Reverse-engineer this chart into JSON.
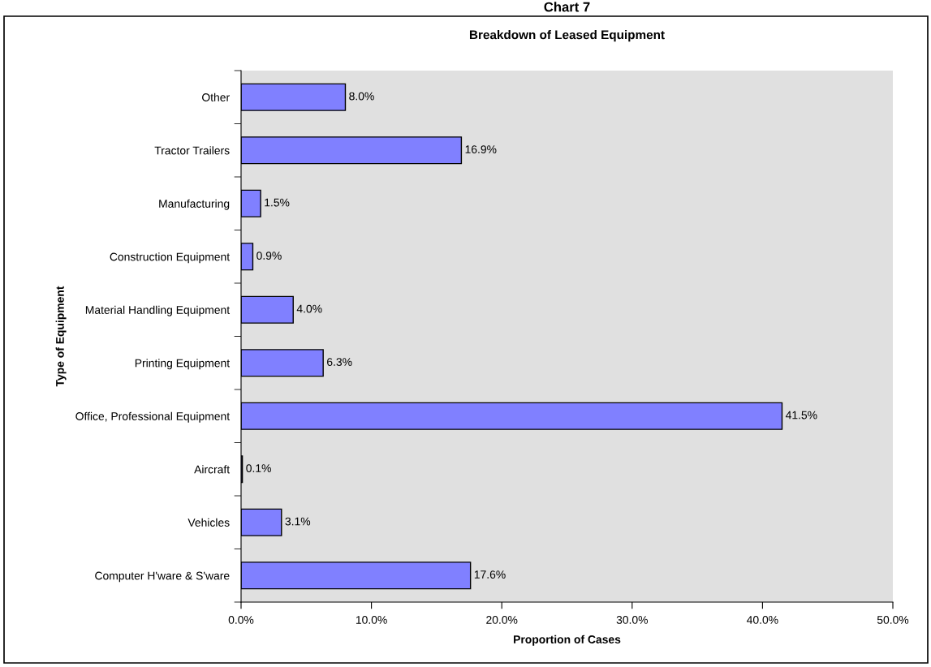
{
  "chart_data": {
    "type": "bar",
    "orientation": "horizontal",
    "title": "Chart 7",
    "subtitle": "Breakdown of Leased Equipment",
    "xlabel": "Proportion of Cases",
    "ylabel": "Type of Equipment",
    "categories": [
      "Other",
      "Tractor Trailers",
      "Manufacturing",
      "Construction Equipment",
      "Material Handling Equipment",
      "Printing Equipment",
      "Office, Professional Equipment",
      "Aircraft",
      "Vehicles",
      "Computer H'ware & S'ware"
    ],
    "values": [
      8.0,
      16.9,
      1.5,
      0.9,
      4.0,
      6.3,
      41.5,
      0.1,
      3.1,
      17.6
    ],
    "value_labels": [
      "8.0%",
      "16.9%",
      "1.5%",
      "0.9%",
      "4.0%",
      "6.3%",
      "41.5%",
      "0.1%",
      "3.1%",
      "17.6%"
    ],
    "color": "#8080ff",
    "xlim": [
      0,
      50
    ],
    "xticks": [
      {
        "value": 0,
        "label": "0.0%"
      },
      {
        "value": 10,
        "label": "10.0%"
      },
      {
        "value": 20,
        "label": "20.0%"
      },
      {
        "value": 30,
        "label": "30.0%"
      },
      {
        "value": 40,
        "label": "40.0%"
      },
      {
        "value": 50,
        "label": "50.0%"
      }
    ],
    "grid": false,
    "legend": false
  }
}
